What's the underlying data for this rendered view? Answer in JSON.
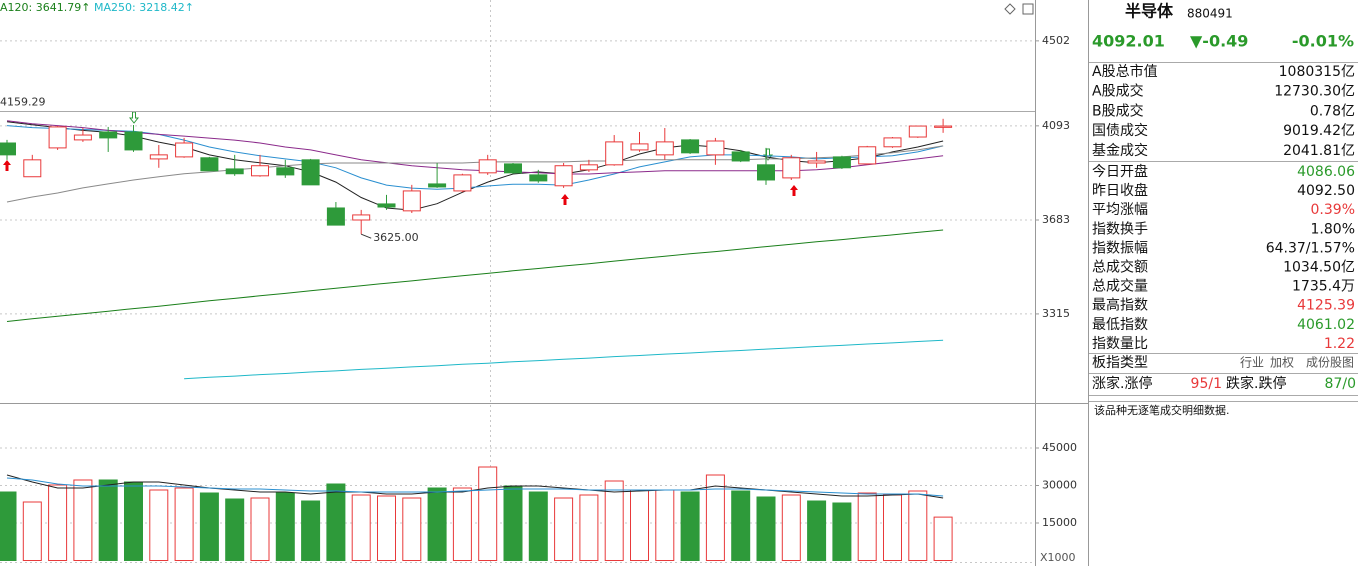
{
  "chart_data": [
    {
      "type": "candlestick",
      "ma_labels": [
        "A120: 3641.79↑",
        "MA250: 3218.42↑"
      ],
      "open": [
        4015,
        3866,
        3993,
        4029,
        4065,
        4065,
        3944,
        3953,
        3949,
        3900,
        3870,
        3905,
        3940,
        3733,
        3683,
        3750,
        3721,
        3835,
        3805,
        3883,
        3922,
        3874,
        3827,
        3896,
        3918,
        3984,
        3962,
        4029,
        3962,
        3975,
        3918,
        3861,
        3926,
        3953,
        3922,
        3998,
        4042,
        4086.06
      ],
      "high": [
        4029,
        3962,
        4092,
        4083,
        4088,
        4097,
        4006,
        4038,
        3953,
        3962,
        3962,
        3940,
        3944,
        3758,
        3725,
        3788,
        3831,
        3926,
        3879,
        3962,
        3926,
        3896,
        3926,
        3940,
        4051,
        4065,
        4083,
        4033,
        4038,
        3984,
        3993,
        3962,
        3975,
        3958,
        4002,
        4042,
        4092,
        4125.39
      ],
      "low": [
        3940,
        3866,
        3984,
        4020,
        3975,
        3975,
        3905,
        3949,
        3892,
        3870,
        3866,
        3861,
        3831,
        3662,
        3625,
        3725,
        3712,
        3818,
        3800,
        3874,
        3879,
        3840,
        3818,
        3887,
        3914,
        3975,
        3940,
        3966,
        3918,
        3930,
        3831,
        3852,
        3905,
        3900,
        3918,
        3993,
        4038,
        4061.02
      ],
      "close": [
        3962,
        3940,
        4088,
        4051,
        4038,
        3984,
        3962,
        4015,
        3892,
        3879,
        3914,
        3874,
        3831,
        3662,
        3704,
        3737,
        3805,
        3822,
        3874,
        3940,
        3883,
        3848,
        3914,
        3918,
        4020,
        4011,
        4020,
        3971,
        4024,
        3935,
        3852,
        3949,
        3935,
        3905,
        3998,
        4038,
        4092,
        4092.01
      ],
      "up_color": "#e8393a",
      "down_color": "#2e9a3a",
      "log": true,
      "ylim": [
        3000,
        4713
      ],
      "yticks": [
        3315,
        3683,
        4093,
        4502
      ],
      "grid": true,
      "price_line": 4159.29,
      "low_label": {
        "value": 3625,
        "label": "3625.00"
      },
      "series": [
        {
          "color": "#222222",
          "values": [
            4112,
            4098,
            4085,
            4072,
            4063,
            4046,
            4019,
            3997,
            3962,
            3940,
            3927,
            3914,
            3887,
            3843,
            3777,
            3733,
            3724,
            3751,
            3799,
            3843,
            3878,
            3887,
            3878,
            3896,
            3927,
            3966,
            3993,
            4006,
            3997,
            3980,
            3953,
            3936,
            3927,
            3936,
            3949,
            3975,
            3997,
            4024
          ]
        },
        {
          "color": "#2a8fd0",
          "values": [
            4094,
            4085,
            4081,
            4076,
            4072,
            4068,
            4054,
            4028,
            3997,
            3975,
            3958,
            3944,
            3931,
            3905,
            3861,
            3830,
            3817,
            3812,
            3817,
            3826,
            3834,
            3834,
            3830,
            3852,
            3878,
            3909,
            3931,
            3953,
            3962,
            3962,
            3958,
            3953,
            3944,
            3949,
            3953,
            3958,
            3975,
            4002
          ]
        },
        {
          "color": "#8b2a8b",
          "values": [
            4116,
            4103,
            4094,
            4085,
            4072,
            4063,
            4054,
            4046,
            4037,
            4028,
            4015,
            3997,
            3984,
            3962,
            3940,
            3927,
            3914,
            3905,
            3896,
            3892,
            3887,
            3883,
            3878,
            3878,
            3883,
            3887,
            3892,
            3892,
            3892,
            3892,
            3892,
            3892,
            3896,
            3905,
            3918,
            3931,
            3944,
            3958
          ]
        },
        {
          "color": "#8a8a8a",
          "values": [
            3758,
            3779,
            3796,
            3818,
            3835,
            3852,
            3866,
            3879,
            3887,
            3896,
            3905,
            3914,
            3922,
            3926,
            3926,
            3926,
            3926,
            3926,
            3926,
            3931,
            3931,
            3931,
            3931,
            3935,
            3935,
            3940,
            3940,
            3940,
            3940,
            3940,
            3944,
            3944,
            3949,
            3953,
            3962,
            3971,
            3984,
            4002
          ]
        },
        {
          "color": "#1a7f1a",
          "values": [
            3287,
            3297,
            3306,
            3316,
            3325,
            3335,
            3344,
            3354,
            3364,
            3373,
            3383,
            3392,
            3402,
            3412,
            3421,
            3431,
            3440,
            3450,
            3460,
            3469,
            3479,
            3488,
            3498,
            3507,
            3517,
            3527,
            3536,
            3546,
            3555,
            3565,
            3575,
            3584,
            3594,
            3603,
            3613,
            3622,
            3632,
            3641.79
          ]
        },
        {
          "color": "#1fb8c8",
          "values": [
            null,
            null,
            null,
            null,
            null,
            null,
            null,
            3083,
            3088,
            3092,
            3097,
            3101,
            3106,
            3110,
            3115,
            3119,
            3124,
            3128,
            3133,
            3137,
            3142,
            3146,
            3151,
            3155,
            3160,
            3164,
            3169,
            3173,
            3178,
            3182,
            3187,
            3191,
            3196,
            3200,
            3205,
            3209,
            3214,
            3218.42
          ]
        }
      ]
    },
    {
      "type": "bar",
      "values": [
        27400,
        23400,
        30200,
        32200,
        32200,
        31400,
        28200,
        29000,
        27000,
        24600,
        25000,
        27000,
        23800,
        30600,
        26200,
        25800,
        25000,
        29000,
        29000,
        37400,
        29800,
        27400,
        25000,
        26200,
        31800,
        28200,
        28200,
        27400,
        34200,
        27800,
        25400,
        26200,
        23800,
        23000,
        27000,
        26200,
        27800,
        17354
      ],
      "colors": [
        "#2e9a3a",
        "#e8393a",
        "#e8393a",
        "#e8393a",
        "#2e9a3a",
        "#2e9a3a",
        "#e8393a",
        "#e8393a",
        "#2e9a3a",
        "#2e9a3a",
        "#e8393a",
        "#2e9a3a",
        "#2e9a3a",
        "#2e9a3a",
        "#e8393a",
        "#e8393a",
        "#e8393a",
        "#2e9a3a",
        "#e8393a",
        "#e8393a",
        "#2e9a3a",
        "#2e9a3a",
        "#e8393a",
        "#e8393a",
        "#e8393a",
        "#e8393a",
        "#e8393a",
        "#2e9a3a",
        "#e8393a",
        "#2e9a3a",
        "#2e9a3a",
        "#e8393a",
        "#2e9a3a",
        "#2e9a3a",
        "#e8393a",
        "#e8393a",
        "#e8393a",
        "#e8393a"
      ],
      "up_color": "#e8393a",
      "ylim": [
        0,
        62000
      ],
      "yticks": [
        15000,
        30000,
        45000
      ],
      "grid": true,
      "unit": "X1000",
      "series": [
        {
          "color": "#222222",
          "values": [
            34200,
            31400,
            29000,
            29000,
            30200,
            31400,
            31400,
            30200,
            29000,
            28200,
            27400,
            27400,
            26600,
            27400,
            27400,
            26600,
            26600,
            27400,
            27400,
            29000,
            29800,
            29800,
            29000,
            28200,
            27400,
            27800,
            28200,
            28200,
            29800,
            29000,
            28200,
            27400,
            26600,
            25800,
            25800,
            26200,
            26600,
            25000
          ]
        },
        {
          "color": "#2a8fd0",
          "values": [
            33000,
            32200,
            30600,
            29800,
            29800,
            29800,
            29800,
            29400,
            29000,
            28600,
            28600,
            28200,
            27800,
            27800,
            27400,
            27400,
            27400,
            27400,
            27800,
            28200,
            28600,
            28600,
            28600,
            28200,
            28200,
            28200,
            28200,
            28200,
            28600,
            28600,
            28200,
            27800,
            27400,
            27000,
            26600,
            26600,
            26600,
            25800
          ]
        }
      ]
    }
  ],
  "panel": {
    "name": "半导体",
    "code": "880491",
    "price": "4092.01",
    "change": "▼-0.49",
    "change_pct": "-0.01%",
    "rows": [
      {
        "label": "A股总市值",
        "value": "1080315亿"
      },
      {
        "label": "A股成交",
        "value": "12730.30亿"
      },
      {
        "label": "B股成交",
        "value": "0.78亿"
      },
      {
        "label": "国债成交",
        "value": "9019.42亿"
      },
      {
        "label": "基金成交",
        "value": "2041.81亿"
      },
      {
        "label": "今日开盘",
        "value": "4086.06",
        "color": "#2a9a2a"
      },
      {
        "label": "昨日收盘",
        "value": "4092.50"
      },
      {
        "label": "平均涨幅",
        "value": "0.39%",
        "color": "#e8393a"
      },
      {
        "label": "指数换手",
        "value": "1.80%"
      },
      {
        "label": "指数振幅",
        "value": "64.37/1.57%"
      },
      {
        "label": "总成交额",
        "value": "1034.50亿"
      },
      {
        "label": "总成交量",
        "value": "1735.4万"
      },
      {
        "label": "最高指数",
        "value": "4125.39",
        "color": "#e8393a"
      },
      {
        "label": "最低指数",
        "value": "4061.02",
        "color": "#2a9a2a"
      },
      {
        "label": "指数量比",
        "value": "1.22",
        "color": "#e8393a"
      }
    ],
    "board_label": "板指类型",
    "board_types": [
      "行业",
      "加权",
      "成份股图"
    ],
    "up_label": "涨家.涨停",
    "up_value": "95/1",
    "down_label": "跌家.跌停",
    "down_value": "87/0",
    "note": "该品种无逐笔成交明细数据."
  }
}
